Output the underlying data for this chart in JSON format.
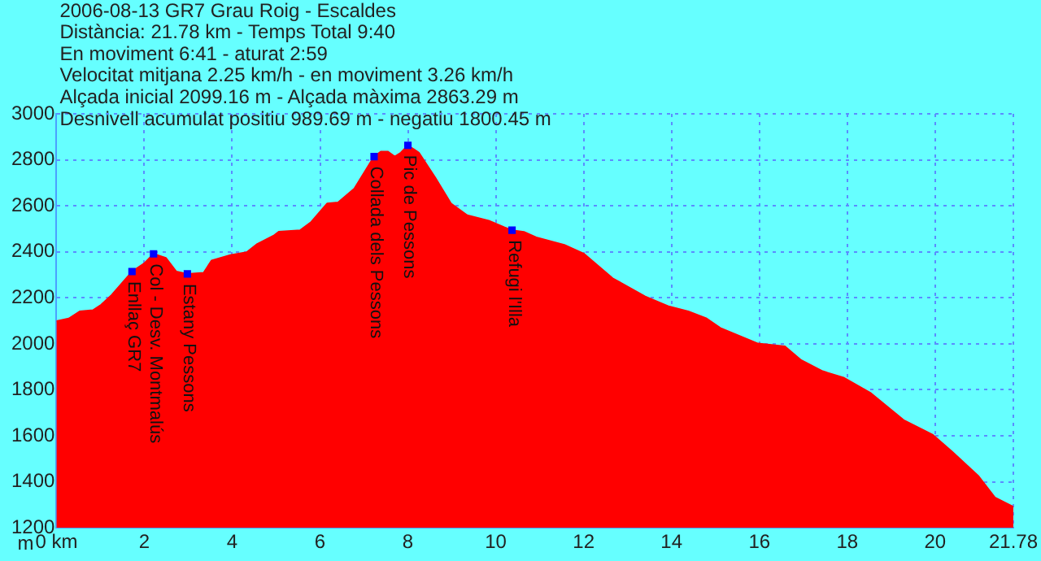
{
  "chart_data": {
    "type": "area",
    "title": "2006-08-13 GR7 Grau Roig - Escaldes",
    "ylabel": "m",
    "annotations": [
      "Distància: 21.78 km - Temps Total 9:40",
      "En moviment 6:41 - aturat 2:59",
      "Velocitat mitjana 2.25 km/h - en moviment 3.26 km/h",
      "Alçada inicial 2099.16 m - Alçada màxima 2863.29 m",
      "Desnivell acumulat positiu 989.69 m - negatiu 1800.45 m",
      {
        "text": "Enllaç GR7",
        "x": 1.72,
        "y": 2314
      },
      {
        "text": "Col - Desv. Montmalús",
        "x": 2.21,
        "y": 2391
      },
      {
        "text": "Estany Pessons",
        "x": 2.98,
        "y": 2304
      },
      {
        "text": "Collada dels Pessons",
        "x": 7.23,
        "y": 2814
      },
      {
        "text": "Pic de Pessons",
        "x": 8.0,
        "y": 2863
      },
      {
        "text": "Refugi l'Illa",
        "x": 10.37,
        "y": 2494
      }
    ],
    "series": [
      {
        "type": "area",
        "color": "#ff0000",
        "x": [
          0,
          0.28,
          0.53,
          0.83,
          1.02,
          1.26,
          1.72,
          2.0,
          2.21,
          2.49,
          2.73,
          2.98,
          3.35,
          3.53,
          3.96,
          4.33,
          4.57,
          4.94,
          5.06,
          5.55,
          5.8,
          6.16,
          6.41,
          6.78,
          7.23,
          7.39,
          7.54,
          7.7,
          7.84,
          8.0,
          8.25,
          8.62,
          8.98,
          9.35,
          9.84,
          10.2,
          10.37,
          10.64,
          10.92,
          11.56,
          12.01,
          12.66,
          13.4,
          13.95,
          14.38,
          14.8,
          15.11,
          15.97,
          16.58,
          16.95,
          17.44,
          17.93,
          18.54,
          19.28,
          19.95,
          20.38,
          20.99,
          21.36,
          21.78
        ],
        "values": [
          2099,
          2110,
          2141,
          2146,
          2170,
          2213,
          2314,
          2350,
          2391,
          2374,
          2314,
          2304,
          2309,
          2362,
          2386,
          2398,
          2434,
          2470,
          2487,
          2494,
          2530,
          2610,
          2615,
          2675,
          2814,
          2836,
          2836,
          2814,
          2831,
          2863,
          2831,
          2723,
          2610,
          2559,
          2535,
          2506,
          2494,
          2487,
          2463,
          2430,
          2391,
          2285,
          2206,
          2162,
          2141,
          2110,
          2069,
          2001,
          1989,
          1929,
          1881,
          1852,
          1785,
          1669,
          1604,
          1532,
          1424,
          1332,
          1291
        ]
      },
      {
        "type": "scatter",
        "color": "#0000ff",
        "marker": "square",
        "x": [
          1.72,
          2.21,
          2.98,
          7.23,
          8.0,
          10.37
        ],
        "values": [
          2314,
          2391,
          2304,
          2814,
          2863,
          2494
        ]
      }
    ],
    "xlim": [
      0,
      21.78
    ],
    "xticks": [
      {
        "value": 0,
        "label": "0 km"
      },
      2,
      4,
      6,
      8,
      10,
      12,
      14,
      16,
      18,
      20,
      21.78
    ],
    "ylim": [
      1200,
      3000
    ],
    "yticks": [
      1200,
      1400,
      1600,
      1800,
      2000,
      2200,
      2400,
      2600,
      2800,
      3000
    ],
    "grid": true,
    "legend": false
  }
}
